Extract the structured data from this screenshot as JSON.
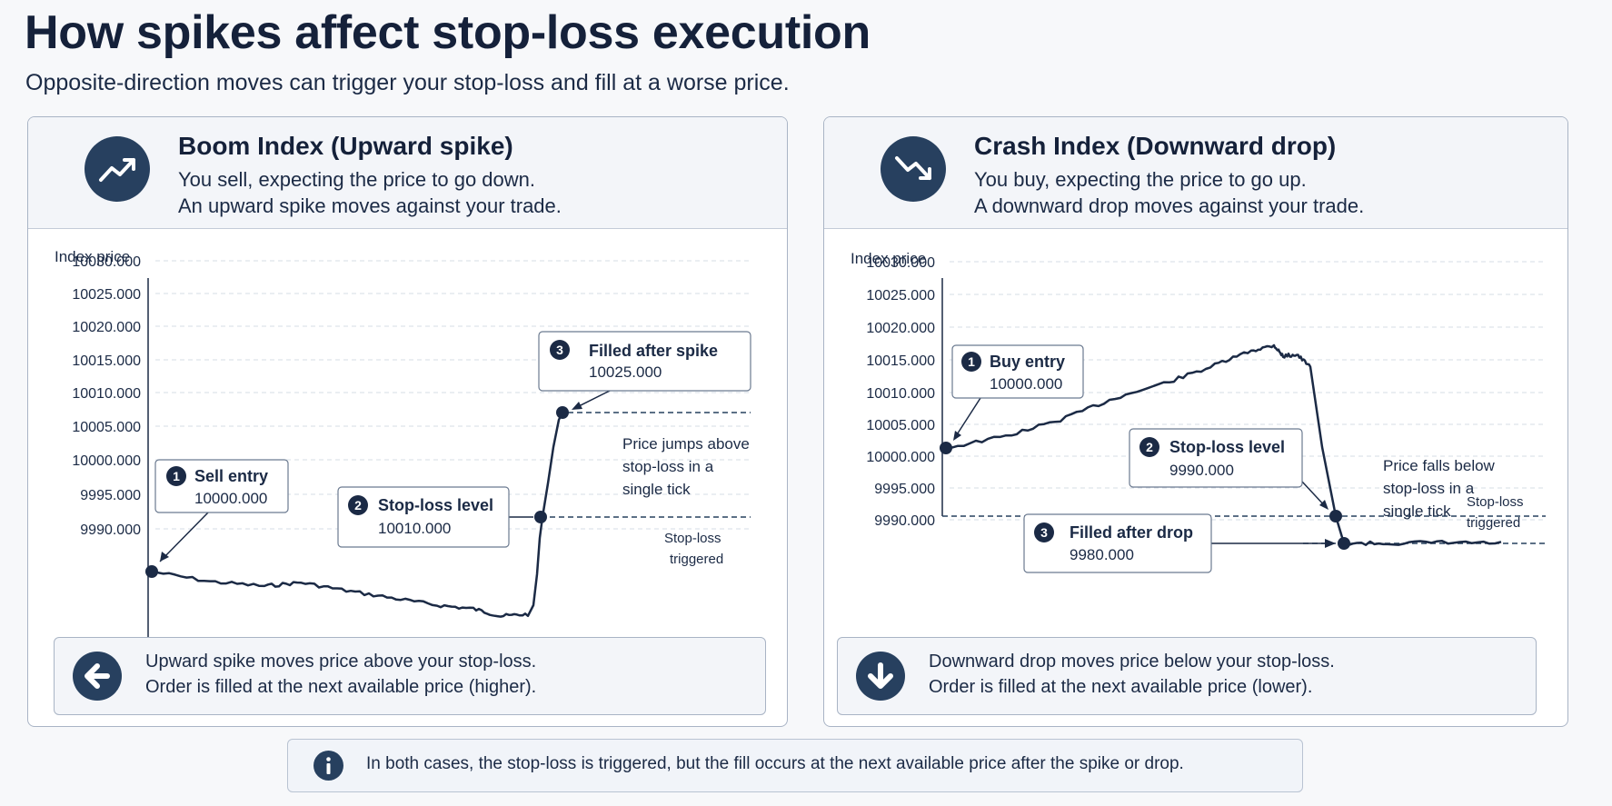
{
  "title": "How spikes affect stop-loss execution",
  "subtitle": "Opposite-direction moves can trigger your stop-loss and fill at a worse price.",
  "colors": {
    "navy": "#27405f",
    "line": "#1b2a45",
    "panel_head": "#f3f5f9",
    "border": "#a9b4c5"
  },
  "panels": [
    {
      "icon": "trending-up-icon",
      "title": "Boom Index (Upward spike)",
      "line1": "You sell, expecting the price to go down.",
      "line2": "An upward spike moves against your trade.",
      "chart_data": {
        "type": "line",
        "ylabel": "Index price",
        "yticks": [
          "10030.000",
          "10025.000",
          "10020.000",
          "10015.000",
          "10010.000",
          "10005.000",
          "10000.000",
          "9995.000",
          "9990.000"
        ],
        "ylim": [
          9990,
          10030
        ],
        "grid": true,
        "series_shape": "drifts slightly down from entry, then spikes sharply upward through the stop-loss",
        "entry": {
          "step": "1",
          "label": "Sell entry",
          "value": "10000.000"
        },
        "stop_loss": {
          "step": "2",
          "label": "Stop-loss level",
          "value": "10010.000"
        },
        "fill": {
          "step": "3",
          "label": "Filled after spike",
          "value": "10025.000"
        },
        "annotation_lines": [
          "Price jumps above",
          "stop-loss in a",
          "single tick"
        ],
        "triggered_lines": [
          "Stop-loss",
          "triggered"
        ]
      },
      "note_icon": "arrow-left-icon",
      "note_line1": "Upward spike moves price above your stop-loss.",
      "note_line2": "Order is filled at the next available price (higher)."
    },
    {
      "icon": "trending-down-icon",
      "title": "Crash Index (Downward drop)",
      "line1": "You buy, expecting the price to go up.",
      "line2": "A downward drop moves against your trade.",
      "chart_data": {
        "type": "line",
        "ylabel": "Index price",
        "yticks": [
          "10030.000",
          "10025.000",
          "10020.000",
          "10015.000",
          "10010.000",
          "10005.000",
          "10000.000",
          "9995.000",
          "9990.000"
        ],
        "ylim": [
          9990,
          10030
        ],
        "grid": true,
        "series_shape": "rises gradually from entry, then drops sharply downward through the stop-loss",
        "entry": {
          "step": "1",
          "label": "Buy entry",
          "value": "10000.000"
        },
        "stop_loss": {
          "step": "2",
          "label": "Stop-loss level",
          "value": "9990.000"
        },
        "fill": {
          "step": "3",
          "label": "Filled after drop",
          "value": "9980.000"
        },
        "annotation_lines": [
          "Price falls below",
          "stop-loss in a",
          "single tick"
        ],
        "triggered_lines": [
          "Stop-loss",
          "triggered"
        ]
      },
      "note_icon": "arrow-down-icon",
      "note_line1": "Downward drop moves price below your stop-loss.",
      "note_line2": "Order is filled at the next available price (lower)."
    }
  ],
  "footer": {
    "icon": "info-icon",
    "text": "In both cases, the stop-loss is triggered, but the fill occurs at the next available price after the spike or drop."
  }
}
